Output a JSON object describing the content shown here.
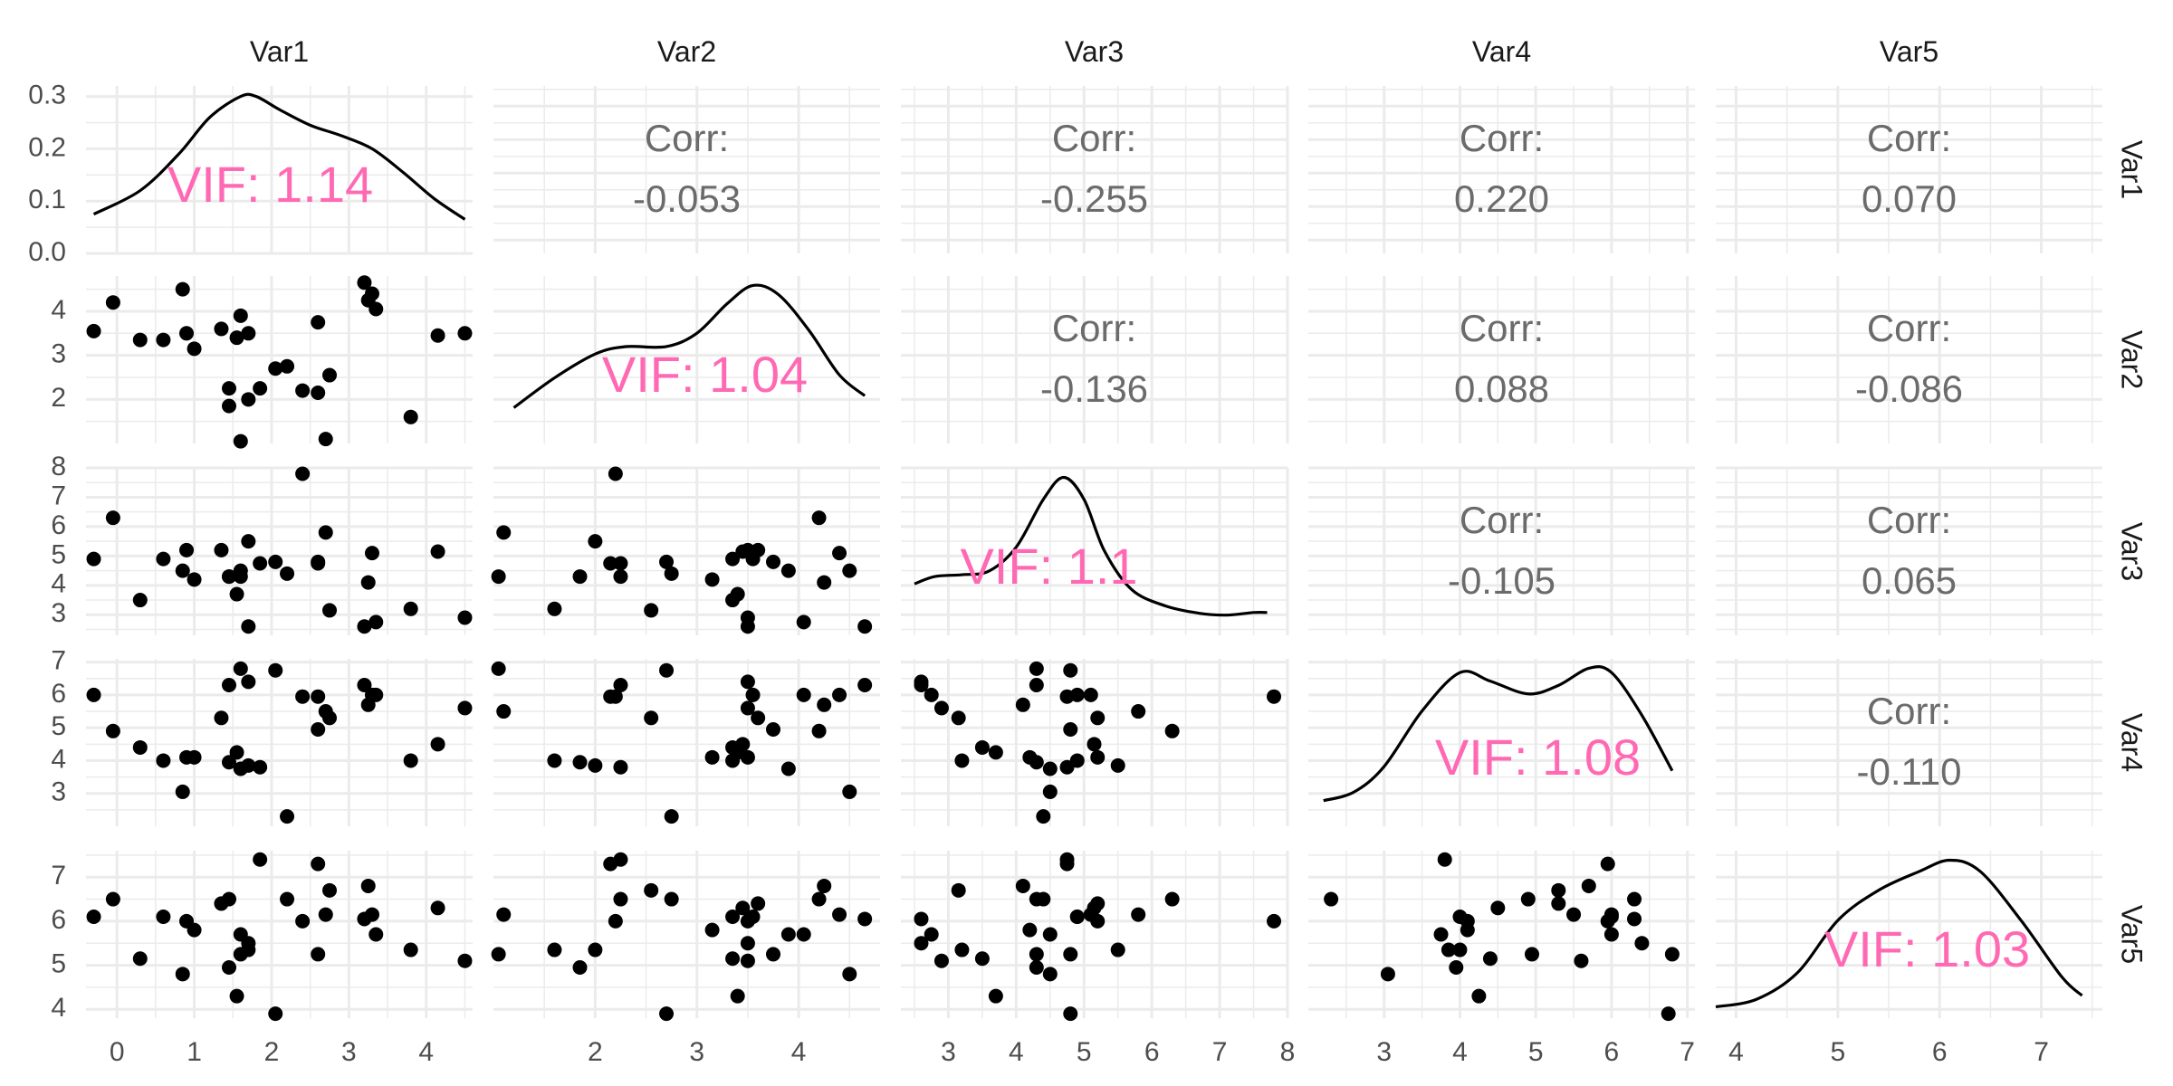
{
  "chart_data": {
    "type": "scatter",
    "subtype": "pairs-matrix",
    "variables": [
      "Var1",
      "Var2",
      "Var3",
      "Var4",
      "Var5"
    ],
    "grid": true,
    "colors": {
      "points": "#000000",
      "density": "#000000",
      "corr_text": "#6b6b6b",
      "vif_text": "#ff69b4",
      "grid": "#ebebeb"
    },
    "axes": {
      "Var1": {
        "range": [
          -0.4,
          4.6
        ],
        "ticks": [
          "0",
          "1",
          "2",
          "3",
          "4"
        ],
        "tick_values": [
          0,
          1,
          2,
          3,
          4
        ]
      },
      "Var2": {
        "range": [
          1.0,
          4.8
        ],
        "ticks": [
          "2",
          "3",
          "4"
        ],
        "tick_values": [
          2,
          3,
          4
        ]
      },
      "Var3": {
        "range": [
          2.3,
          8.0
        ],
        "ticks": [
          "3",
          "4",
          "5",
          "6",
          "7",
          "8"
        ],
        "tick_values": [
          3,
          4,
          5,
          6,
          7,
          8
        ]
      },
      "Var4": {
        "range": [
          2.0,
          7.1
        ],
        "ticks": [
          "3",
          "4",
          "5",
          "6",
          "7"
        ],
        "tick_values": [
          3,
          4,
          5,
          6,
          7
        ]
      },
      "Var5": {
        "range": [
          3.8,
          7.6
        ],
        "ticks": [
          "4",
          "5",
          "6",
          "7"
        ],
        "tick_values": [
          4,
          5,
          6,
          7
        ]
      }
    },
    "density_axis": {
      "range": [
        0,
        0.32
      ],
      "ticks": [
        "0.0",
        "0.1",
        "0.2",
        "0.3"
      ],
      "tick_values": [
        0,
        0.1,
        0.2,
        0.3
      ]
    },
    "diagonal": [
      {
        "var": "Var1",
        "vif_label": "VIF: 1.14",
        "x": [
          -0.3,
          0.3,
          0.8,
          1.2,
          1.6,
          1.8,
          2.1,
          2.5,
          2.9,
          3.3,
          3.7,
          4.1,
          4.5
        ],
        "y": [
          0.075,
          0.12,
          0.19,
          0.26,
          0.3,
          0.3,
          0.275,
          0.245,
          0.225,
          0.2,
          0.155,
          0.105,
          0.065
        ]
      },
      {
        "var": "Var2",
        "vif_label": "VIF: 1.04",
        "x": [
          1.2,
          1.6,
          2.0,
          2.3,
          2.7,
          3.0,
          3.3,
          3.55,
          3.8,
          4.1,
          4.4,
          4.65
        ],
        "y": [
          0.12,
          0.22,
          0.3,
          0.325,
          0.325,
          0.37,
          0.47,
          0.53,
          0.5,
          0.38,
          0.23,
          0.16
        ]
      },
      {
        "var": "Var3",
        "vif_label": "VIF: 1.1",
        "x": [
          2.5,
          2.8,
          3.2,
          3.6,
          4.0,
          4.4,
          4.7,
          5.0,
          5.3,
          5.7,
          6.2,
          6.7,
          7.1,
          7.5,
          7.7
        ],
        "y": [
          0.14,
          0.16,
          0.165,
          0.175,
          0.24,
          0.37,
          0.43,
          0.37,
          0.23,
          0.125,
          0.08,
          0.06,
          0.055,
          0.062,
          0.062
        ]
      },
      {
        "var": "Var4",
        "vif_label": "VIF: 1.08",
        "x": [
          2.2,
          2.6,
          3.0,
          3.5,
          4.0,
          4.4,
          4.9,
          5.3,
          5.7,
          6.0,
          6.4,
          6.8
        ],
        "y": [
          0.06,
          0.08,
          0.14,
          0.27,
          0.36,
          0.34,
          0.31,
          0.33,
          0.37,
          0.36,
          0.26,
          0.13
        ]
      },
      {
        "var": "Var5",
        "vif_label": "VIF: 1.03",
        "x": [
          3.8,
          4.2,
          4.6,
          5.0,
          5.4,
          5.8,
          6.1,
          6.4,
          6.8,
          7.2,
          7.4
        ],
        "y": [
          0.03,
          0.05,
          0.12,
          0.26,
          0.34,
          0.39,
          0.42,
          0.39,
          0.26,
          0.11,
          0.06
        ]
      }
    ],
    "correlations": [
      {
        "row": "Var1",
        "col": "Var2",
        "label": "Corr:",
        "value": "-0.053"
      },
      {
        "row": "Var1",
        "col": "Var3",
        "label": "Corr:",
        "value": "-0.255"
      },
      {
        "row": "Var1",
        "col": "Var4",
        "label": "Corr:",
        "value": "0.220"
      },
      {
        "row": "Var1",
        "col": "Var5",
        "label": "Corr:",
        "value": "0.070"
      },
      {
        "row": "Var2",
        "col": "Var3",
        "label": "Corr:",
        "value": "-0.136"
      },
      {
        "row": "Var2",
        "col": "Var4",
        "label": "Corr:",
        "value": "0.088"
      },
      {
        "row": "Var2",
        "col": "Var5",
        "label": "Corr:",
        "value": "-0.086"
      },
      {
        "row": "Var3",
        "col": "Var4",
        "label": "Corr:",
        "value": "-0.105"
      },
      {
        "row": "Var3",
        "col": "Var5",
        "label": "Corr:",
        "value": "0.065"
      },
      {
        "row": "Var4",
        "col": "Var5",
        "label": "Corr:",
        "value": "-0.110"
      }
    ],
    "observations": [
      [
        -0.3,
        3.55,
        4.9,
        6.0,
        6.1
      ],
      [
        -0.05,
        4.2,
        6.3,
        4.9,
        6.5
      ],
      [
        0.3,
        3.35,
        3.5,
        4.4,
        5.15
      ],
      [
        0.6,
        3.35,
        4.9,
        4.0,
        6.1
      ],
      [
        0.85,
        4.5,
        4.5,
        3.05,
        4.8
      ],
      [
        0.9,
        3.5,
        5.2,
        4.1,
        6.0
      ],
      [
        1.0,
        3.15,
        4.2,
        4.1,
        5.8
      ],
      [
        1.35,
        3.6,
        5.2,
        5.3,
        6.4
      ],
      [
        1.45,
        1.85,
        4.3,
        3.95,
        4.95
      ],
      [
        1.45,
        2.25,
        4.3,
        6.3,
        6.5
      ],
      [
        1.55,
        3.4,
        3.7,
        4.25,
        4.3
      ],
      [
        1.6,
        3.9,
        4.5,
        3.75,
        5.7
      ],
      [
        1.6,
        1.05,
        4.3,
        6.8,
        5.25
      ],
      [
        1.7,
        2.0,
        5.5,
        3.85,
        5.35
      ],
      [
        1.7,
        3.5,
        2.6,
        6.4,
        5.5
      ],
      [
        1.85,
        2.25,
        4.75,
        3.8,
        7.4
      ],
      [
        2.05,
        2.7,
        4.8,
        6.75,
        3.9
      ],
      [
        2.2,
        2.75,
        4.4,
        2.3,
        6.5
      ],
      [
        2.4,
        2.2,
        7.8,
        5.95,
        6.0
      ],
      [
        2.6,
        2.15,
        4.75,
        5.95,
        7.3
      ],
      [
        2.6,
        3.75,
        4.8,
        4.95,
        5.25
      ],
      [
        2.7,
        1.1,
        5.8,
        5.5,
        6.15
      ],
      [
        2.75,
        2.55,
        3.15,
        5.3,
        6.7
      ],
      [
        3.2,
        4.65,
        2.6,
        6.3,
        6.05
      ],
      [
        3.25,
        4.25,
        4.1,
        5.7,
        6.8
      ],
      [
        3.3,
        4.4,
        5.1,
        6.0,
        6.15
      ],
      [
        3.35,
        4.05,
        2.75,
        6.0,
        5.7
      ],
      [
        3.8,
        1.6,
        3.2,
        4.0,
        5.35
      ],
      [
        4.15,
        3.45,
        5.15,
        4.5,
        6.3
      ],
      [
        4.5,
        3.5,
        2.9,
        5.6,
        5.1
      ]
    ]
  }
}
